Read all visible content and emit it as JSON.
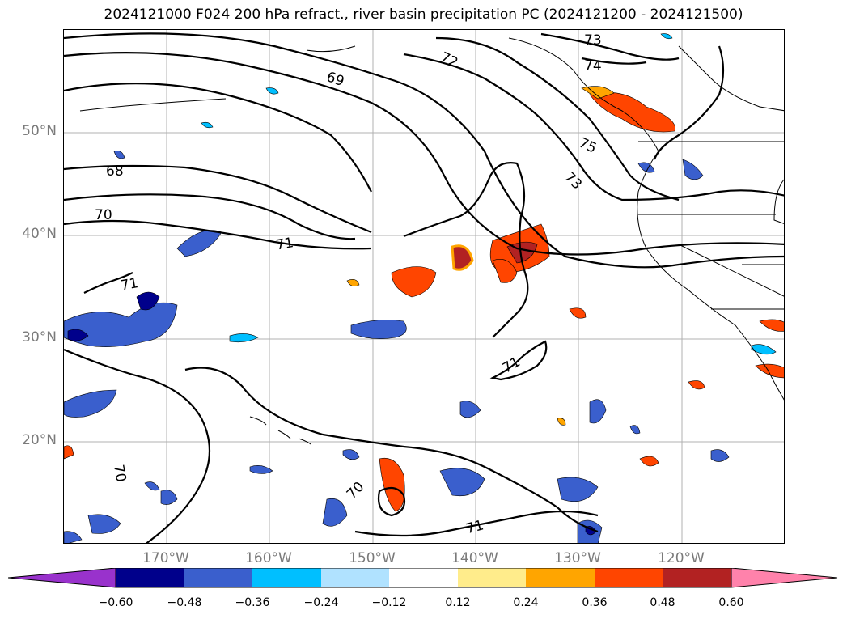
{
  "title": "2024121000 F024 200 hPa refract., river basin precipitation PC (2024121200 - 2024121500)",
  "lat_labels": [
    "50°N",
    "40°N",
    "30°N",
    "20°N"
  ],
  "lon_labels": [
    "170°W",
    "160°W",
    "150°W",
    "140°W",
    "130°W",
    "120°W"
  ],
  "contour_labels": [
    "73",
    "72",
    "74",
    "69",
    "75",
    "68",
    "73",
    "70",
    "71",
    "71",
    "71",
    "70",
    "70",
    "71"
  ],
  "colorbar": {
    "ticks": [
      "−0.60",
      "−0.48",
      "−0.36",
      "−0.24",
      "−0.12",
      "0.12",
      "0.24",
      "0.36",
      "0.48",
      "0.60"
    ],
    "colors": [
      "#9932CC",
      "#00008B",
      "#3A5FCD",
      "#00BFFF",
      "#B0E2FF",
      "#FFFFFF",
      "#FFEC8B",
      "#FFA500",
      "#FF4500",
      "#B22222",
      "#FF82AB"
    ]
  }
}
